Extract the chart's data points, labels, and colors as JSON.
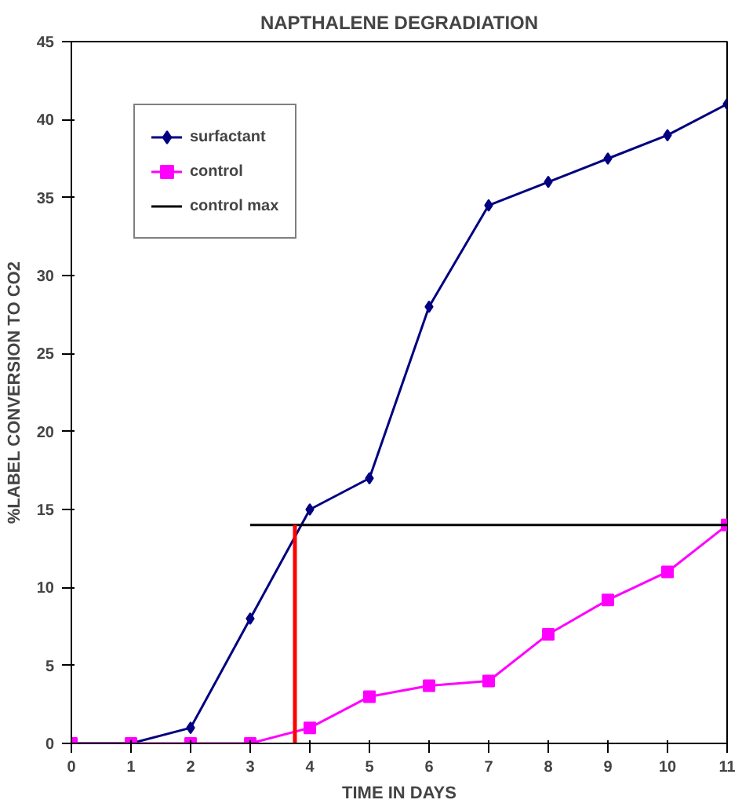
{
  "chart_data": {
    "type": "line",
    "title": "NAPTHALENE DEGRADIATION",
    "xlabel": "TIME IN DAYS",
    "ylabel": "%LABEL CONVERSION TO CO2",
    "x": [
      0,
      1,
      2,
      3,
      4,
      5,
      6,
      7,
      8,
      9,
      10,
      11
    ],
    "xlim": [
      0,
      11
    ],
    "xticks": [
      0,
      1,
      2,
      3,
      4,
      5,
      6,
      7,
      8,
      9,
      10,
      11
    ],
    "ylim": [
      0,
      45
    ],
    "yticks": [
      0,
      5,
      10,
      15,
      20,
      25,
      30,
      35,
      40,
      45
    ],
    "grid": false,
    "legend": "top left",
    "series": [
      {
        "name": "surfactant",
        "color": "#000080",
        "marker": "diamond",
        "values": [
          0,
          0,
          1,
          8,
          15,
          17,
          28,
          34.5,
          36,
          37.5,
          39,
          41
        ]
      },
      {
        "name": "control",
        "color": "#ff00ff",
        "marker": "square",
        "values": [
          0,
          0,
          0,
          0,
          1,
          3,
          3.7,
          4,
          7,
          9.2,
          11,
          14
        ]
      },
      {
        "name": "control max",
        "color": "#000000",
        "marker": "none",
        "x": [
          3,
          4,
          5,
          6,
          7,
          8,
          9,
          10,
          11
        ],
        "values": [
          14,
          14,
          14,
          14,
          14,
          14,
          14,
          14,
          14
        ]
      },
      {
        "color": "#ff0000",
        "marker": "none",
        "x": [
          3.75,
          3.75
        ],
        "values": [
          0,
          14
        ]
      }
    ]
  }
}
